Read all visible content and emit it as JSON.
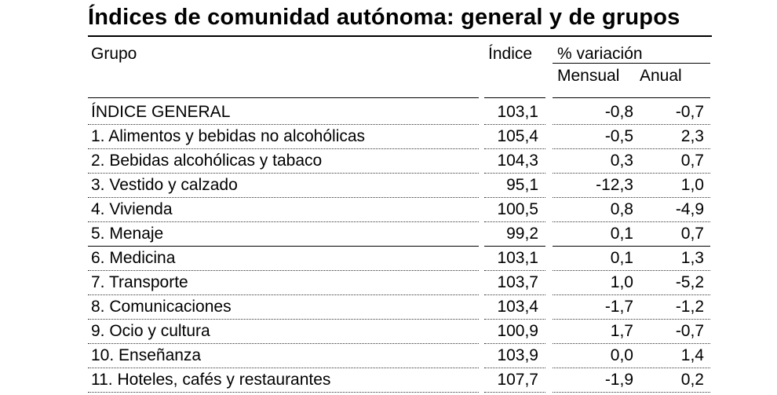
{
  "title": "Índices de comunidad autónoma: general y de grupos",
  "headers": {
    "group": "Grupo",
    "index": "Índice",
    "variation": "% variación",
    "monthly": "Mensual",
    "annual": "Anual"
  },
  "rows": [
    {
      "name": "ÍNDICE GENERAL",
      "index": "103,1",
      "monthly": "-0,8",
      "annual": "-0,7"
    },
    {
      "name": "1. Alimentos y bebidas no alcohólicas",
      "index": "105,4",
      "monthly": "-0,5",
      "annual": "2,3"
    },
    {
      "name": "2. Bebidas alcohólicas y tabaco",
      "index": "104,3",
      "monthly": "0,3",
      "annual": "0,7"
    },
    {
      "name": "3. Vestido y calzado",
      "index": "95,1",
      "monthly": "-12,3",
      "annual": "1,0"
    },
    {
      "name": "4. Vivienda",
      "index": "100,5",
      "monthly": "0,8",
      "annual": "-4,9"
    },
    {
      "name": "5. Menaje",
      "index": "99,2",
      "monthly": "0,1",
      "annual": "0,7"
    },
    {
      "name": "6. Medicina",
      "index": "103,1",
      "monthly": "0,1",
      "annual": "1,3"
    },
    {
      "name": "7. Transporte",
      "index": "103,7",
      "monthly": "1,0",
      "annual": "-5,2"
    },
    {
      "name": "8. Comunicaciones",
      "index": "103,4",
      "monthly": "-1,7",
      "annual": "-1,2"
    },
    {
      "name": "9. Ocio y cultura",
      "index": "100,9",
      "monthly": "1,7",
      "annual": "-0,7"
    },
    {
      "name": "10. Enseñanza",
      "index": "103,9",
      "monthly": "0,0",
      "annual": "1,4"
    },
    {
      "name": "11. Hoteles, cafés y restaurantes",
      "index": "107,7",
      "monthly": "-1,9",
      "annual": "0,2"
    }
  ]
}
